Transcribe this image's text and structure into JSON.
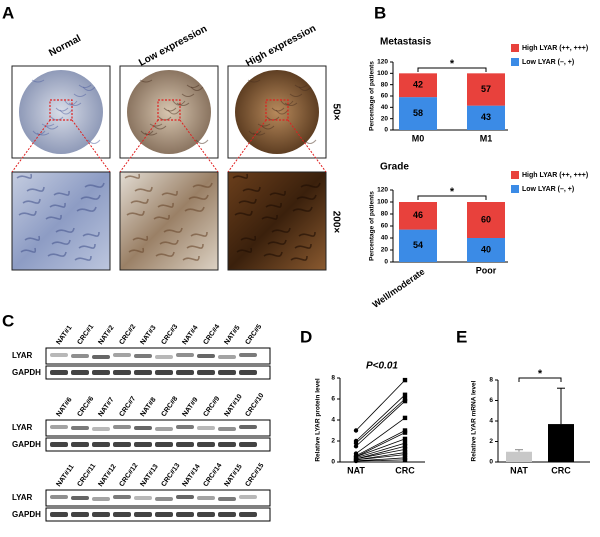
{
  "panel_labels": [
    "A",
    "B",
    "C",
    "D",
    "E"
  ],
  "panel_a": {
    "columns": [
      "Normal",
      "Low expression",
      "High expression"
    ],
    "magnifications": [
      "50×",
      "200×"
    ]
  },
  "panel_c": {
    "rows": [
      "LYAR",
      "GAPDH"
    ],
    "blocks": [
      {
        "lanes": [
          "NAT#1",
          "CRC#1",
          "NAT#2",
          "CRC#2",
          "NAT#3",
          "CRC#3",
          "NAT#4",
          "CRC#4",
          "NAT#5",
          "CRC#5"
        ]
      },
      {
        "lanes": [
          "NAT#6",
          "CRC#6",
          "NAT#7",
          "CRC#7",
          "NAT#8",
          "CRC#8",
          "NAT#9",
          "CRC#9",
          "NAT#10",
          "CRC#10"
        ]
      },
      {
        "lanes": [
          "NAT#11",
          "CRC#11",
          "NAT#12",
          "CRC#12",
          "NAT#13",
          "CRC#13",
          "NAT#14",
          "CRC#14",
          "NAT#15",
          "CRC#15"
        ]
      }
    ]
  },
  "chart_data": [
    {
      "type": "stacked_bar",
      "title": "Metastasis",
      "y_label": "Percentage of patients",
      "categories": [
        "M0",
        "M1"
      ],
      "series": [
        {
          "name": "Low LYAR (–, +)",
          "color": "#3b8be6",
          "values": [
            58,
            43
          ]
        },
        {
          "name": "High LYAR (++, +++)",
          "color": "#e8413c",
          "values": [
            42,
            57
          ]
        }
      ],
      "ylim": [
        0,
        120
      ],
      "yticks": [
        0,
        20,
        40,
        60,
        80,
        100,
        120
      ],
      "annotation": "*"
    },
    {
      "type": "stacked_bar",
      "title": "Grade",
      "y_label": "Percentage of patients",
      "categories": [
        "Well/moderate",
        "Poor"
      ],
      "series": [
        {
          "name": "Low LYAR (–, +)",
          "color": "#3b8be6",
          "values": [
            54,
            40
          ]
        },
        {
          "name": "High LYAR (++, +++)",
          "color": "#e8413c",
          "values": [
            46,
            60
          ]
        }
      ],
      "ylim": [
        0,
        120
      ],
      "yticks": [
        0,
        20,
        40,
        60,
        80,
        100,
        120
      ],
      "annotation": "*"
    },
    {
      "type": "paired",
      "title": "P<0.01",
      "y_label": "Relative LYAR protein level",
      "categories": [
        "NAT",
        "CRC"
      ],
      "values": [
        [
          3.0,
          2.0,
          1.8,
          1.5,
          0.8,
          0.6,
          0.5,
          0.5,
          0.4,
          0.3,
          0.3,
          0.2,
          0.2,
          0.1,
          0.1
        ],
        [
          7.8,
          6.4,
          6.0,
          5.8,
          4.2,
          3.0,
          2.8,
          2.2,
          1.8,
          1.5,
          1.2,
          0.9,
          0.7,
          0.4,
          0.2
        ]
      ],
      "ylim": [
        0,
        8
      ],
      "yticks": [
        0,
        2,
        4,
        6,
        8
      ]
    },
    {
      "type": "bar_error",
      "y_label": "Relative LYAR mRNA level",
      "categories": [
        "NAT",
        "CRC"
      ],
      "values": [
        1.0,
        3.7
      ],
      "errors": [
        0.2,
        3.5
      ],
      "colors": [
        "#c8c8c8",
        "#000000"
      ],
      "ylim": [
        0,
        8
      ],
      "yticks": [
        0,
        2,
        4,
        6,
        8
      ],
      "annotation": "*"
    }
  ]
}
